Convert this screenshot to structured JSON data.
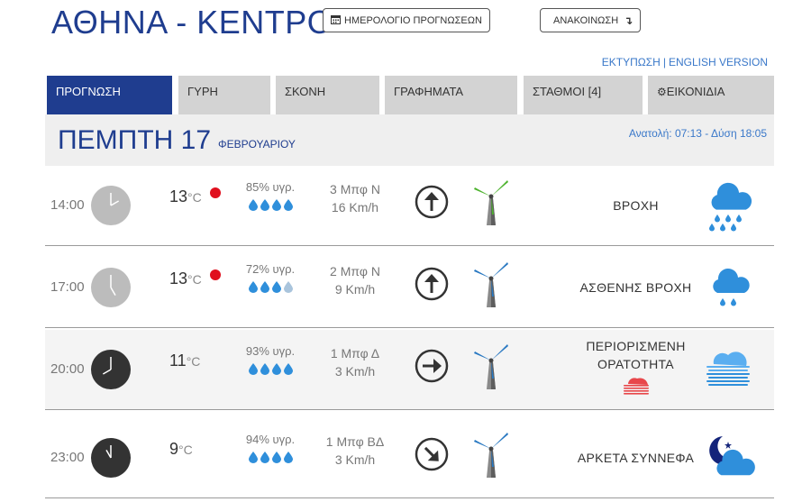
{
  "header": {
    "title": "ΑΘΗΝΑ - ΚΕΝΤΡΟ",
    "calendar_button": "ΗΜΕΡΟΛΟΓΙΟ ΠΡΟΓΝΩΣΕΩΝ",
    "announcement_button": "ΑΝΑΚΟΙΝΩΣΗ",
    "print_link": "ΕΚΤΥΠΩΣΗ",
    "link_separator": "|",
    "english_link": "ENGLISH VERSION"
  },
  "tabs": [
    {
      "label": "ΠΡΟΓΝΩΣΗ",
      "active": true
    },
    {
      "label": "ΓΥΡΗ",
      "active": false
    },
    {
      "label": "ΣΚΟΝΗ",
      "active": false
    },
    {
      "label": "ΓΡΑΦΗΜΑΤΑ",
      "active": false
    },
    {
      "label": "ΣΤΑΘΜΟΙ [4]",
      "active": false
    },
    {
      "label": "ΕΙΚΟΝΙΔΙΑ",
      "active": false,
      "icon": "gear-icon"
    }
  ],
  "day": {
    "name": "ΠΕΜΠΤΗ 17",
    "month": "ΦΕΒΡΟΥΑΡΙΟΥ",
    "sun": "Ανατολή: 07:13  - Δύση 18:05"
  },
  "colors": {
    "brand_blue": "#1f3d8f",
    "link_blue": "#3a78c9",
    "rain_dot": "#e0101e",
    "drop_blue": "#2f8fdb",
    "drop_light": "#a9c4dc",
    "tab_gray": "#d3d3d3"
  },
  "forecast": [
    {
      "time": "14:00",
      "clock_style": "light",
      "hour": 14,
      "temp": "13",
      "unit": "°C",
      "rain_indicator": true,
      "humidity": "85% υγρ.",
      "humidity_drops": 4,
      "wind_beaufort": "3 Μπφ Ν",
      "wind_speed": "16 Km/h",
      "wind_arrow_icon": "arrow-up-icon",
      "wind_arrow_rotation": 0,
      "turbine_color": "green",
      "condition": "ΒΡΟΧΗ",
      "weather_icon": "rain-cloud-icon"
    },
    {
      "time": "17:00",
      "clock_style": "light",
      "hour": 17,
      "temp": "13",
      "unit": "°C",
      "rain_indicator": true,
      "humidity": "72% υγρ.",
      "humidity_drops": 3,
      "wind_beaufort": "2 Μπφ Ν",
      "wind_speed": "9 Km/h",
      "wind_arrow_icon": "arrow-up-icon",
      "wind_arrow_rotation": 0,
      "turbine_color": "blue",
      "condition": "ΑΣΘΕΝΗΣ ΒΡΟΧΗ",
      "weather_icon": "light-rain-cloud-icon"
    },
    {
      "time": "20:00",
      "clock_style": "dark",
      "hour": 20,
      "temp": "11",
      "unit": "°C",
      "rain_indicator": false,
      "humidity": "93% υγρ.",
      "humidity_drops": 4,
      "wind_beaufort": "1 Μπφ Δ",
      "wind_speed": "3 Km/h",
      "wind_arrow_icon": "arrow-right-icon",
      "wind_arrow_rotation": 90,
      "turbine_color": "blue",
      "condition": "ΠΕΡΙΟΡΙΣΜΕΝΗ ΟΡΑΤΟΤΗΤΑ",
      "weather_icon": "fog-icon"
    },
    {
      "time": "23:00",
      "clock_style": "dark",
      "hour": 23,
      "temp": "9",
      "unit": "°C",
      "rain_indicator": false,
      "humidity": "94% υγρ.",
      "humidity_drops": 4,
      "wind_beaufort": "1 Μπφ ΒΔ",
      "wind_speed": "3 Km/h",
      "wind_arrow_icon": "arrow-down-right-icon",
      "wind_arrow_rotation": 135,
      "turbine_color": "blue",
      "condition": "ΑΡΚΕΤΑ ΣΥΝΝΕΦΑ",
      "weather_icon": "night-cloud-icon"
    }
  ]
}
